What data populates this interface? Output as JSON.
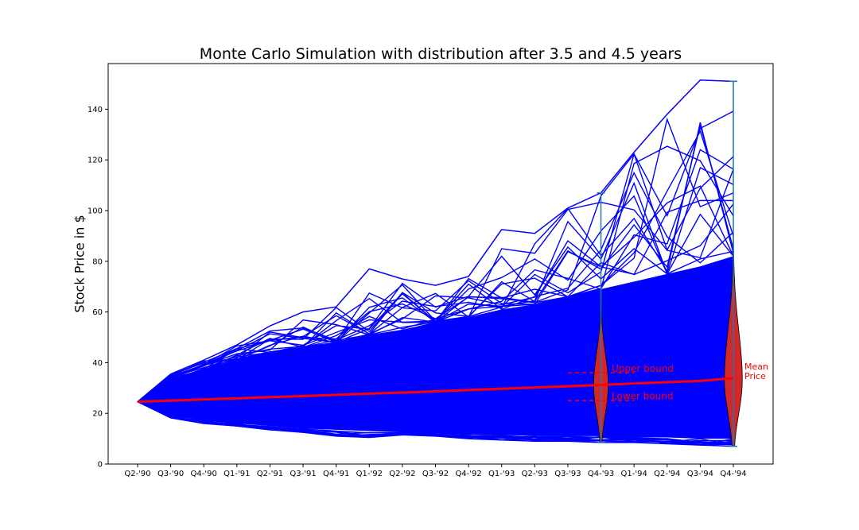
{
  "chart_data": {
    "type": "line",
    "title": "Monte Carlo Simulation with distribution after 3.5 and 4.5 years",
    "xlabel": "",
    "ylabel": "Stock Price in $",
    "categories": [
      "Q2-'90",
      "Q3-'90",
      "Q4-'90",
      "Q1-'91",
      "Q2-'91",
      "Q3-'91",
      "Q4-'91",
      "Q1-'92",
      "Q2-'92",
      "Q3-'92",
      "Q4-'92",
      "Q1-'93",
      "Q2-'93",
      "Q3-'93",
      "Q4-'93",
      "Q1-'94",
      "Q2-'94",
      "Q3-'94",
      "Q4-'94"
    ],
    "ylim": [
      0,
      158
    ],
    "yticks": [
      0,
      20,
      40,
      60,
      80,
      100,
      120,
      140
    ],
    "grid": false,
    "start_price": 24.6,
    "simulation_color": "#0000ff",
    "upper_envelope": [
      24.6,
      35.5,
      41,
      47,
      54.5,
      60,
      62,
      77,
      73,
      70.5,
      74,
      92.5,
      91,
      101,
      107,
      123,
      138,
      151.5,
      151
    ],
    "lower_envelope": [
      24.6,
      18.2,
      16,
      15,
      13.5,
      12.5,
      11,
      10.5,
      11.5,
      11,
      10,
      9.5,
      9,
      9,
      8.5,
      8.5,
      8,
      7.5,
      7
    ],
    "dense_upper": [
      24.6,
      33,
      37,
      41,
      44,
      46,
      48,
      51,
      53,
      56,
      58,
      61,
      63,
      66,
      69,
      72,
      75,
      78,
      82
    ],
    "dense_lower": [
      24.6,
      19,
      17,
      16,
      15,
      14,
      13.5,
      13,
      12.5,
      12,
      11.5,
      11.5,
      11,
      11,
      11,
      10.5,
      10.5,
      10,
      10
    ],
    "mean_price": {
      "label": "Mean Price",
      "color": "#ff0000",
      "values": [
        24.6,
        25,
        25.5,
        25.9,
        26.4,
        26.8,
        27.3,
        27.8,
        28.2,
        28.7,
        29.2,
        29.7,
        30.2,
        30.7,
        31.2,
        31.8,
        32.3,
        32.8,
        33.9
      ]
    },
    "bounds": {
      "upper": {
        "label": "Upper bound",
        "value": 36,
        "x_from": 13,
        "x_to": 15
      },
      "lower": {
        "label": "Lower bound",
        "value": 25,
        "x_from": 13,
        "x_to": 15
      },
      "color": "#ff0000"
    },
    "distributions": [
      {
        "label": "3.5 years",
        "x_index": 14,
        "min": 8.5,
        "max": 107,
        "mode": 31,
        "half_width": 0.22,
        "color": "#d62728",
        "line_color": "#1f77b4"
      },
      {
        "label": "4.5 years",
        "x_index": 18,
        "min": 7,
        "max": 151,
        "mode": 33,
        "half_width": 0.27,
        "color": "#d62728",
        "line_color": "#1f77b4"
      }
    ],
    "annotations": [
      {
        "text": "Upper bound"
      },
      {
        "text": "Lower bound"
      },
      {
        "lines": [
          "Mean",
          "Price"
        ]
      }
    ]
  }
}
